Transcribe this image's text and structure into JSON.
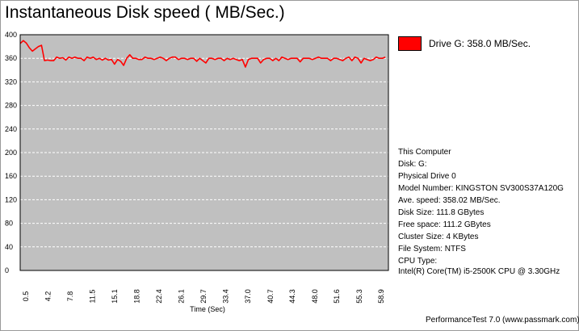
{
  "chart_data": {
    "type": "line",
    "title": "Instantaneous Disk speed ( MB/Sec.)",
    "xlabel": "Time (Sec)",
    "ylabel": "",
    "ylim": [
      0,
      400
    ],
    "yticks": [
      0,
      40,
      80,
      120,
      160,
      200,
      240,
      280,
      320,
      360,
      400
    ],
    "xlim": [
      0,
      60.5
    ],
    "xticks": [
      "0.5",
      "4.2",
      "7.8",
      "11.5",
      "15.1",
      "18.8",
      "22.4",
      "26.1",
      "29.7",
      "33.4",
      "37.0",
      "40.7",
      "44.3",
      "48.0",
      "51.6",
      "55.3",
      "58.9"
    ],
    "grid": true,
    "legend_position": "right",
    "series": [
      {
        "name": "Drive G: 358.0 MB/Sec.",
        "color": "#ff0000",
        "x": [
          0,
          0.5,
          1.0,
          1.5,
          2.0,
          2.5,
          3.0,
          3.5,
          4.0,
          4.5,
          5.0,
          5.5,
          6.0,
          6.5,
          7.0,
          7.5,
          8.0,
          8.5,
          9.0,
          9.5,
          10.0,
          10.5,
          11.0,
          11.5,
          12.0,
          12.5,
          13.0,
          13.5,
          14.0,
          14.5,
          15.0,
          15.5,
          16.0,
          16.5,
          17.0,
          17.5,
          18.0,
          18.5,
          19.0,
          19.5,
          20.0,
          20.5,
          21.0,
          21.5,
          22.0,
          22.5,
          23.0,
          23.5,
          24.0,
          24.5,
          25.0,
          25.5,
          26.0,
          26.5,
          27.0,
          27.5,
          28.0,
          28.5,
          29.0,
          29.5,
          30.0,
          30.5,
          31.0,
          31.5,
          32.0,
          32.5,
          33.0,
          33.5,
          34.0,
          34.5,
          35.0,
          35.5,
          36.0,
          36.5,
          37.0,
          37.5,
          38.0,
          38.5,
          39.0,
          39.5,
          40.0,
          40.5,
          41.0,
          41.5,
          42.0,
          42.5,
          43.0,
          43.5,
          44.0,
          44.5,
          45.0,
          45.5,
          46.0,
          46.5,
          47.0,
          47.5,
          48.0,
          48.5,
          49.0,
          49.5,
          50.0,
          50.5,
          51.0,
          51.5,
          52.0,
          52.5,
          53.0,
          53.5,
          54.0,
          54.5,
          55.0,
          55.5,
          56.0,
          56.5,
          57.0,
          57.5,
          58.0,
          58.5,
          59.0,
          59.5,
          60.0
        ],
        "values": [
          385,
          390,
          386,
          378,
          372,
          376,
          380,
          382,
          356,
          357,
          356,
          356,
          362,
          360,
          361,
          357,
          362,
          360,
          362,
          360,
          360,
          356,
          362,
          360,
          362,
          358,
          360,
          357,
          360,
          357,
          358,
          350,
          358,
          355,
          348,
          360,
          366,
          360,
          360,
          358,
          358,
          362,
          360,
          360,
          358,
          360,
          362,
          360,
          356,
          360,
          362,
          362,
          358,
          360,
          360,
          358,
          360,
          360,
          355,
          360,
          356,
          352,
          360,
          360,
          358,
          360,
          360,
          356,
          360,
          358,
          360,
          358,
          356,
          358,
          345,
          358,
          360,
          360,
          360,
          352,
          358,
          360,
          360,
          356,
          360,
          356,
          362,
          360,
          358,
          360,
          360,
          360,
          354,
          360,
          360,
          360,
          358,
          360,
          362,
          360,
          360,
          360,
          356,
          360,
          360,
          358,
          356,
          360,
          362,
          356,
          362,
          360,
          352,
          360,
          358,
          356,
          358,
          362,
          360,
          360,
          362
        ]
      }
    ]
  },
  "legend": {
    "label": "Drive G: 358.0 MB/Sec.",
    "color": "#ff0000"
  },
  "info": {
    "computer": "This Computer",
    "disk": "Disk: G:",
    "physical_drive": "Physical Drive 0",
    "model": "Model Number: KINGSTON SV300S37A120G",
    "ave_speed": "Ave. speed: 358.02 MB/Sec.",
    "disk_size": "Disk Size: 111.8 GBytes",
    "free_space": "Free space: 111.2 GBytes",
    "cluster_size": "Cluster Size: 4 KBytes",
    "file_system": "File System: NTFS",
    "cpu_type_label": "CPU Type:",
    "cpu_type_value": "Intel(R) Core(TM) i5-2500K CPU @ 3.30GHz"
  },
  "footer": "PerformanceTest 7.0 (www.passmark.com)"
}
